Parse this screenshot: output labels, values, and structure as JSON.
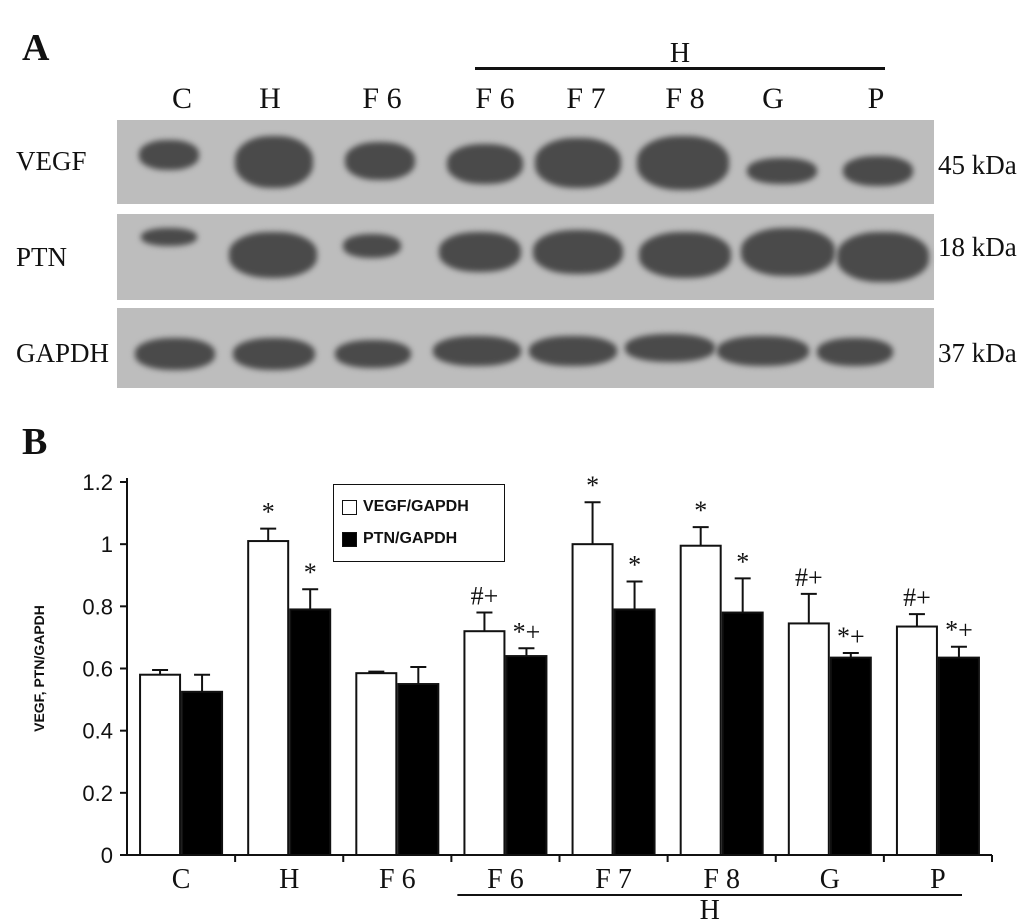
{
  "panel_a": {
    "letter": "A",
    "group_label": "H",
    "lanes": [
      "C",
      "H",
      "F 6",
      "F 6",
      "F 7",
      "F 8",
      "G",
      "P"
    ],
    "rows": [
      {
        "protein": "VEGF",
        "size": "45 kDa"
      },
      {
        "protein": "PTN",
        "size": "18 kDa"
      },
      {
        "protein": "GAPDH",
        "size": "37 kDa"
      }
    ]
  },
  "panel_b": {
    "letter": "B"
  },
  "chart_data": {
    "type": "bar",
    "categories": [
      "C",
      "H",
      "F 6",
      "F 6",
      "F 7",
      "F 8",
      "G",
      "P"
    ],
    "ylabel": "VEGF, PTN/GAPDH",
    "xlabel": "",
    "group_label": "H",
    "group_categories": [
      "F 6",
      "F 7",
      "F 8",
      "G",
      "P"
    ],
    "ylim": [
      0,
      1.2
    ],
    "yticks": [
      "0",
      "0.2",
      "0.4",
      "0.6",
      "0.8",
      "1",
      "1.2"
    ],
    "series": [
      {
        "name": "VEGF/GAPDH",
        "fill": "#ffffff",
        "values": [
          0.58,
          1.01,
          0.585,
          0.72,
          1.0,
          0.995,
          0.745,
          0.735
        ],
        "errors": [
          0.015,
          0.04,
          0.005,
          0.06,
          0.135,
          0.06,
          0.095,
          0.04
        ],
        "annotations": [
          "",
          "*",
          "",
          "#+",
          "*",
          "*",
          "#+",
          "#+"
        ]
      },
      {
        "name": "PTN/GAPDH",
        "fill": "#000000",
        "values": [
          0.525,
          0.79,
          0.55,
          0.64,
          0.79,
          0.78,
          0.635,
          0.635
        ],
        "errors": [
          0.055,
          0.065,
          0.055,
          0.025,
          0.09,
          0.11,
          0.015,
          0.035
        ],
        "annotations": [
          "",
          "*",
          "",
          "*+",
          "*",
          "*",
          "*+",
          "*+"
        ]
      }
    ],
    "legend_position": "top-center",
    "grid": false
  }
}
